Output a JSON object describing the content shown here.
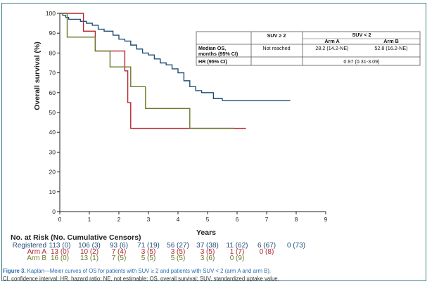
{
  "chart_data": {
    "type": "line",
    "xlabel": "Years",
    "ylabel": "Overall survival (%)",
    "xlim": [
      0,
      9
    ],
    "ylim": [
      0,
      100
    ],
    "xticks": [
      "0",
      "1",
      "2",
      "3",
      "4",
      "5",
      "6",
      "7",
      "8",
      "9"
    ],
    "yticks": [
      "0",
      "10",
      "20",
      "30",
      "40",
      "50",
      "60",
      "70",
      "80",
      "90",
      "100"
    ],
    "grid": false,
    "series": [
      {
        "name": "Registered",
        "color": "#1f4e79",
        "x": [
          0,
          0.1,
          0.2,
          0.3,
          0.5,
          0.7,
          0.9,
          1.1,
          1.3,
          1.5,
          1.6,
          1.8,
          2.0,
          2.2,
          2.4,
          2.6,
          2.8,
          3.0,
          3.2,
          3.4,
          3.6,
          3.8,
          4.0,
          4.2,
          4.4,
          4.6,
          4.8,
          5.2,
          5.5,
          7.8
        ],
        "y": [
          100,
          99,
          98,
          97,
          97,
          96,
          95,
          94,
          92,
          91,
          91,
          89,
          87,
          86,
          84,
          82,
          80,
          79,
          77,
          75,
          74,
          72,
          70,
          66,
          63,
          61,
          60,
          57,
          56,
          56
        ]
      },
      {
        "name": "Arm A",
        "color": "#b5262e",
        "x": [
          0,
          0.8,
          1.2,
          2.2,
          2.3,
          2.4,
          6.3
        ],
        "y": [
          100,
          91,
          81,
          71,
          55,
          42,
          42
        ]
      },
      {
        "name": "Arm B",
        "color": "#6b7a2a",
        "x": [
          0,
          0.25,
          1.2,
          1.7,
          2.4,
          2.9,
          4.4,
          5.9
        ],
        "y": [
          100,
          88,
          81,
          73,
          63,
          52,
          42,
          42
        ]
      }
    ]
  },
  "table": {
    "col_suv_ge2": "SUV ≥ 2",
    "col_suv_lt2": "SUV < 2",
    "col_arm_a": "Arm A",
    "col_arm_b": "Arm B",
    "row1_label_line1": "Median OS,",
    "row1_label_line2": "months (95% CI)",
    "row1_suv_ge2": "Not reached",
    "row1_arm_a": "28.2 (14.2-NE)",
    "row1_arm_b": "52.8 (16.2-NE)",
    "row2_label": "HR (95% CI)",
    "row2_value": "0.97 (0.31-3.09)"
  },
  "risk": {
    "title": "No. at Risk (No. Cumulative Censors)",
    "rows": [
      {
        "label": "Registered",
        "color": "#1f4e79",
        "values": [
          "113 (0)",
          "106 (3)",
          "93 (6)",
          "71 (19)",
          "56 (27)",
          "37 (38)",
          "11 (62)",
          "6 (67)",
          "0 (73)"
        ]
      },
      {
        "label": "Arm A",
        "color": "#b5262e",
        "values": [
          "13 (0)",
          "10 (2)",
          "7 (4)",
          "3 (5)",
          "3 (5)",
          "3 (5)",
          "1 (7)",
          "0 (8)",
          ""
        ]
      },
      {
        "label": "Arm B",
        "color": "#6b7a2a",
        "values": [
          "16 (0)",
          "13 (1)",
          "7 (5)",
          "5 (5)",
          "5 (5)",
          "3 (6)",
          "0 (9)",
          "",
          ""
        ]
      }
    ]
  },
  "caption": {
    "figure_label": "Figure 3.",
    "main": "Kaplan—Meier curves of OS for patients with SUV ≥ 2 and patients with SUV < 2 (arm A and arm B).",
    "abbrev": "CI, confidence interval; HR, hazard ratio; NE, not estimable; OS, overall survival; SUV, standardized uptake value."
  }
}
